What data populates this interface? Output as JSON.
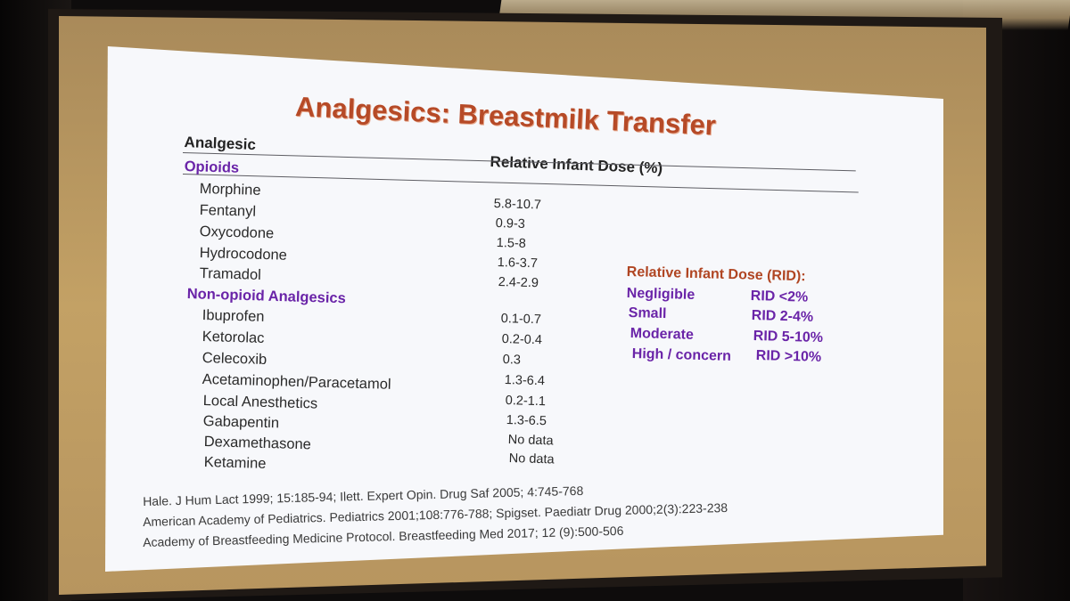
{
  "slide": {
    "title": "Analgesics: Breastmilk Transfer",
    "column_headers": {
      "analgesic": "Analgesic",
      "rid": "Relative Infant Dose (%)"
    },
    "categories": [
      {
        "label": "Opioids",
        "drugs": [
          {
            "name": "Morphine",
            "rid": "5.8-10.7"
          },
          {
            "name": "Fentanyl",
            "rid": "0.9-3"
          },
          {
            "name": "Oxycodone",
            "rid": "1.5-8"
          },
          {
            "name": "Hydrocodone",
            "rid": "1.6-3.7"
          },
          {
            "name": "Tramadol",
            "rid": "2.4-2.9"
          }
        ]
      },
      {
        "label": "Non-opioid Analgesics",
        "drugs": [
          {
            "name": "Ibuprofen",
            "rid": "0.1-0.7"
          },
          {
            "name": "Ketorolac",
            "rid": "0.2-0.4"
          },
          {
            "name": "Celecoxib",
            "rid": "0.3"
          },
          {
            "name": "Acetaminophen/Paracetamol",
            "rid": "1.3-6.4"
          },
          {
            "name": "Local Anesthetics",
            "rid": "0.2-1.1"
          },
          {
            "name": "Gabapentin",
            "rid": "1.3-6.5"
          },
          {
            "name": "Dexamethasone",
            "rid": "No data"
          },
          {
            "name": "Ketamine",
            "rid": "No data"
          }
        ]
      }
    ],
    "legend": {
      "title": "Relative Infant Dose (RID):",
      "rows": [
        {
          "label": "Negligible",
          "value": "RID  <2%"
        },
        {
          "label": "Small",
          "value": "RID  2-4%"
        },
        {
          "label": "Moderate",
          "value": "RID  5-10%"
        },
        {
          "label": "High / concern",
          "value": "RID  >10%"
        }
      ]
    },
    "references": [
      "Hale. J Hum Lact 1999; 15:185-94; Ilett. Expert Opin. Drug Saf 2005; 4:745-768",
      "American Academy of Pediatrics. Pediatrics 2001;108:776-788; Spigset. Paediatr Drug 2000;2(3):223-238",
      "Academy of Breastfeeding Medicine Protocol. Breastfeeding Med 2017; 12 (9):500-506"
    ]
  }
}
